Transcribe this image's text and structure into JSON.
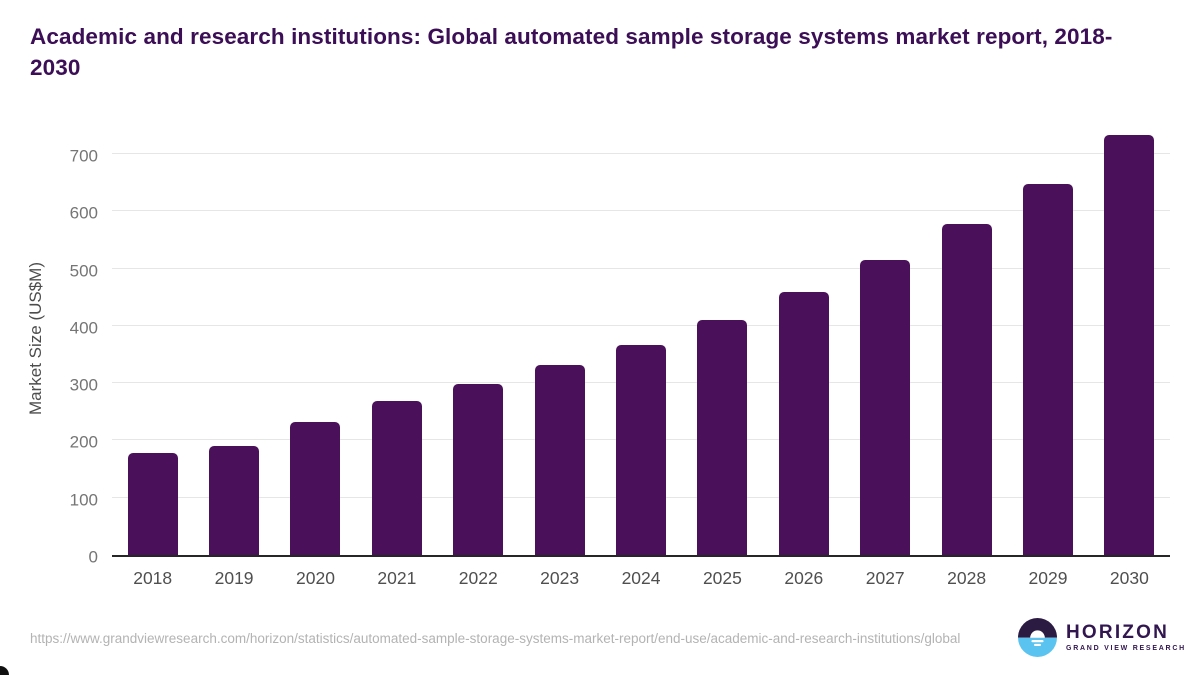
{
  "page": {
    "title": "Academic and research institutions: Global automated sample storage systems market report, 2018-2030"
  },
  "chart_data": {
    "type": "bar",
    "title": "Academic and research institutions: Global automated sample storage systems market report, 2018-2030",
    "categories": [
      "2018",
      "2019",
      "2020",
      "2021",
      "2022",
      "2023",
      "2024",
      "2025",
      "2026",
      "2027",
      "2028",
      "2029",
      "2030"
    ],
    "values": [
      178,
      190,
      232,
      269,
      299,
      332,
      367,
      411,
      459,
      515,
      577,
      648,
      733
    ],
    "xlabel": "",
    "ylabel": "Market Size (US$M)",
    "ylim": [
      0,
      750
    ],
    "yticks": [
      0,
      100,
      200,
      300,
      400,
      500,
      600,
      700
    ],
    "grid": true,
    "legend": false,
    "bar_color": "#4a1059"
  },
  "footer": {
    "source_url": "https://www.grandviewresearch.com/horizon/statistics/automated-sample-storage-systems-market-report/end-use/academic-and-research-institutions/global",
    "logo": {
      "brand": "HORIZON",
      "subtitle": "GRAND VIEW RESEARCH",
      "colors": {
        "circle_top": "#2b1b43",
        "circle_bottom": "#5bc3ef",
        "sun": "#ffffff",
        "text": "#31164f"
      }
    }
  },
  "colors": {
    "title_text": "#3b0e56",
    "bar": "#4a1059",
    "axis_line": "#262626",
    "gridline": "#e6e6e6",
    "ytick_text": "#757575",
    "xtick_text": "#4f4f4f",
    "url_text": "#b3b3b3"
  }
}
